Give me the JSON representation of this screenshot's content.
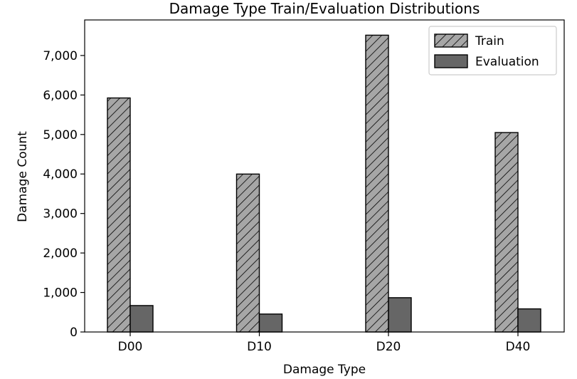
{
  "chart_data": {
    "type": "bar",
    "title": "Damage Type Train/Evaluation Distributions",
    "xlabel": "Damage Type",
    "ylabel": "Damage Count",
    "categories": [
      "D00",
      "D10",
      "D20",
      "D40"
    ],
    "series": [
      {
        "name": "Train",
        "values": [
          5925,
          3998,
          7514,
          5049
        ],
        "color": "#a6a6a6",
        "pattern": "diagonal-hatch"
      },
      {
        "name": "Evaluation",
        "values": [
          669,
          454,
          868,
          585
        ],
        "color": "#666666",
        "pattern": "solid"
      }
    ],
    "ylim": [
      0,
      7900
    ],
    "yticks": [
      0,
      1000,
      2000,
      3000,
      4000,
      5000,
      6000,
      7000
    ],
    "ytick_labels": [
      "0",
      "1,000",
      "2,000",
      "3,000",
      "4,000",
      "5,000",
      "6,000",
      "7,000"
    ],
    "grid": false,
    "legend_position": "top-right"
  }
}
